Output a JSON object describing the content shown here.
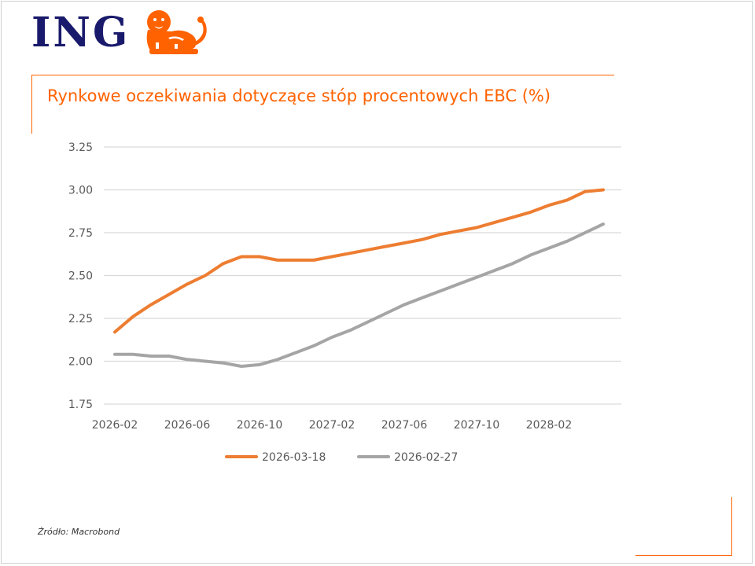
{
  "brand": {
    "name": "ING",
    "logo_icon": "lion-icon",
    "accent": "#ff6200",
    "navy": "#1a1a6c"
  },
  "source": "Źródło: Macrobond",
  "chart_data": {
    "type": "line",
    "title": "Rynkowe oczekiwania dotyczące stóp procentowych EBC (%)",
    "ylim": [
      1.75,
      3.25
    ],
    "yticks": [
      "3.25",
      "3.00",
      "2.75",
      "2.50",
      "2.25",
      "2.00",
      "1.75"
    ],
    "ytick_values": [
      3.25,
      3.0,
      2.75,
      2.5,
      2.25,
      2.0,
      1.75
    ],
    "xlim": [
      "2026-02",
      "2028-06"
    ],
    "xticks": [
      "2026-02",
      "2026-06",
      "2026-10",
      "2027-02",
      "2027-06",
      "2027-10",
      "2028-02"
    ],
    "grid": true,
    "legend_position": "bottom",
    "x": [
      "2026-02",
      "2026-03",
      "2026-04",
      "2026-05",
      "2026-06",
      "2026-07",
      "2026-08",
      "2026-09",
      "2026-10",
      "2026-11",
      "2026-12",
      "2027-01",
      "2027-02",
      "2027-03",
      "2027-04",
      "2027-05",
      "2027-06",
      "2027-07",
      "2027-08",
      "2027-09",
      "2027-10",
      "2027-11",
      "2027-12",
      "2028-01",
      "2028-02",
      "2028-03",
      "2028-04",
      "2028-05"
    ],
    "series": [
      {
        "name": "2026-03-18",
        "color": "#ed7d31",
        "values": [
          2.17,
          2.26,
          2.33,
          2.39,
          2.45,
          2.5,
          2.57,
          2.61,
          2.61,
          2.59,
          2.59,
          2.59,
          2.61,
          2.63,
          2.65,
          2.67,
          2.69,
          2.71,
          2.74,
          2.76,
          2.78,
          2.81,
          2.84,
          2.87,
          2.91,
          2.94,
          2.99,
          3.0
        ]
      },
      {
        "name": "2026-02-27",
        "color": "#a5a5a5",
        "values": [
          2.04,
          2.04,
          2.03,
          2.03,
          2.01,
          2.0,
          1.99,
          1.97,
          1.98,
          2.01,
          2.05,
          2.09,
          2.14,
          2.18,
          2.23,
          2.28,
          2.33,
          2.37,
          2.41,
          2.45,
          2.49,
          2.53,
          2.57,
          2.62,
          2.66,
          2.7,
          2.75,
          2.8
        ]
      }
    ]
  }
}
